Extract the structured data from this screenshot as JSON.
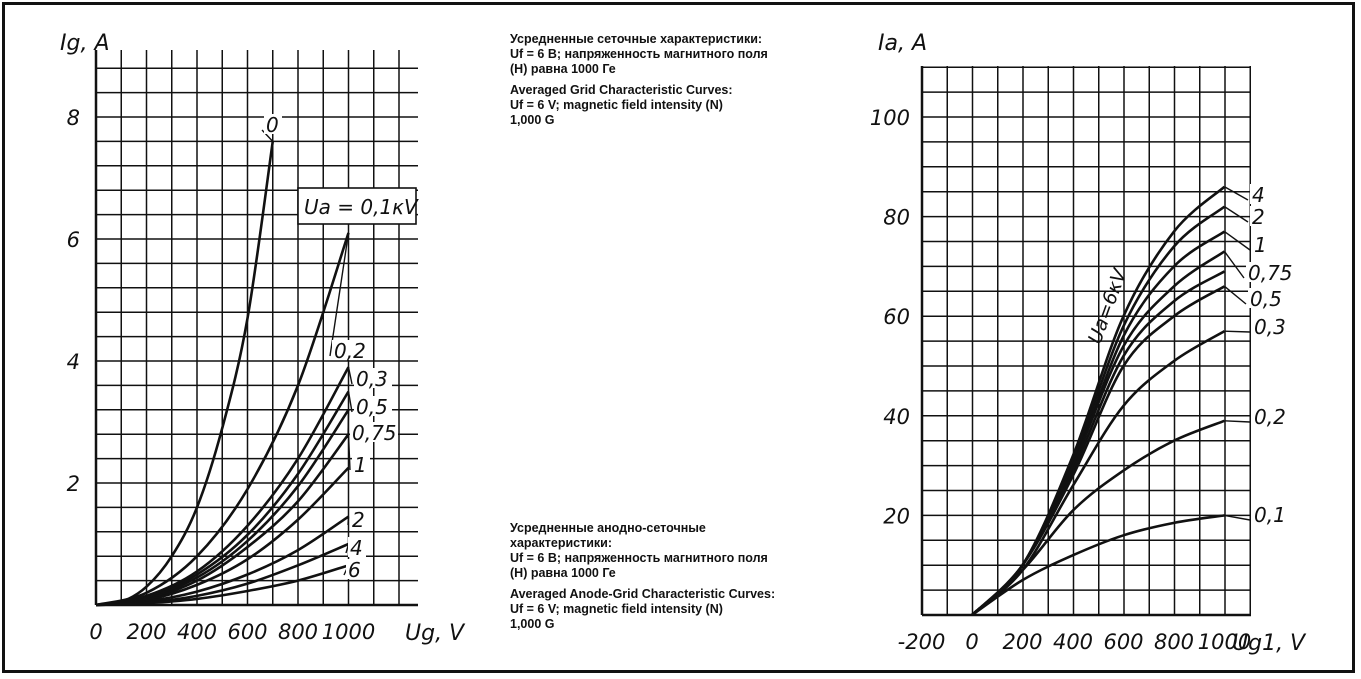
{
  "captions": {
    "grid_ru": [
      "Усредненные сеточные характеристики:",
      "Uf = 6 В; напряженность магнитного поля",
      "(Н) равна 1000 Ге"
    ],
    "grid_en": [
      "Averaged Grid Characteristic Curves:",
      "Uf = 6 V; magnetic field intensity (N)",
      "1,000 G"
    ],
    "anode_ru": [
      "Усредненные анодно-сеточные",
      "характеристики:",
      "Uf = 6 В; напряженность магнитного поля",
      "(Н) равна 1000 Ге"
    ],
    "anode_en": [
      "Averaged Anode-Grid Characteristic Curves:",
      "Uf = 6 V; magnetic field intensity (N)",
      "1,000 G"
    ]
  },
  "colors": {
    "ink": "#111111",
    "background": "#ffffff"
  },
  "chart_data": [
    {
      "type": "line",
      "ylabel": "Ig, A",
      "xlabel": "Ug, V",
      "xlim": [
        0,
        1100
      ],
      "ylim": [
        0,
        8.6
      ],
      "x_ticks": [
        "0",
        "200",
        "400",
        "600",
        "800",
        "1000"
      ],
      "y_ticks": [
        "2",
        "4",
        "6",
        "8"
      ],
      "grid": true,
      "annotation": "Ua = 0,1κV",
      "series": [
        {
          "name": "0",
          "x": [
            0,
            100,
            200,
            300,
            400,
            500,
            600,
            700
          ],
          "y": [
            0,
            0.05,
            0.3,
            0.8,
            1.6,
            2.9,
            4.7,
            7.6
          ]
        },
        {
          "name": "0,2",
          "x": [
            0,
            200,
            400,
            600,
            800,
            1000
          ],
          "y": [
            0,
            0.2,
            0.8,
            1.9,
            3.6,
            6.1
          ]
        },
        {
          "name": "0,3",
          "x": [
            0,
            200,
            400,
            600,
            800,
            1000
          ],
          "y": [
            0,
            0.15,
            0.55,
            1.3,
            2.4,
            3.9
          ]
        },
        {
          "name": "0,5",
          "x": [
            0,
            200,
            400,
            600,
            800,
            1000
          ],
          "y": [
            0,
            0.13,
            0.5,
            1.15,
            2.15,
            3.5
          ]
        },
        {
          "name": "0,75",
          "x": [
            0,
            200,
            400,
            600,
            800,
            1000
          ],
          "y": [
            0,
            0.12,
            0.45,
            1.05,
            1.95,
            3.2
          ]
        },
        {
          "name": "1",
          "x": [
            0,
            200,
            400,
            600,
            800,
            1000
          ],
          "y": [
            0,
            0.1,
            0.4,
            0.95,
            1.7,
            2.8
          ]
        },
        {
          "name": "",
          "x": [
            0,
            200,
            400,
            600,
            800,
            1000
          ],
          "y": [
            0,
            0.08,
            0.33,
            0.75,
            1.4,
            2.25
          ]
        },
        {
          "name": "2",
          "x": [
            0,
            200,
            400,
            600,
            800,
            1000
          ],
          "y": [
            0,
            0.06,
            0.22,
            0.5,
            0.9,
            1.45
          ]
        },
        {
          "name": "4",
          "x": [
            0,
            200,
            400,
            600,
            800,
            1000
          ],
          "y": [
            0,
            0.04,
            0.15,
            0.35,
            0.65,
            1.0
          ]
        },
        {
          "name": "6",
          "x": [
            0,
            200,
            400,
            600,
            800,
            1000
          ],
          "y": [
            0,
            0.03,
            0.1,
            0.23,
            0.4,
            0.65
          ]
        }
      ]
    },
    {
      "type": "line",
      "ylabel": "Ia, A",
      "xlabel": "Ug1, V",
      "xlim": [
        -200,
        1100
      ],
      "ylim": [
        0,
        110
      ],
      "x_ticks": [
        "-200",
        "0",
        "200",
        "400",
        "600",
        "800",
        "1000"
      ],
      "y_ticks": [
        "20",
        "40",
        "60",
        "80",
        "100"
      ],
      "grid": true,
      "annotation": "Ua=6κV",
      "series": [
        {
          "name": "4",
          "x": [
            0,
            200,
            400,
            600,
            800,
            1000
          ],
          "y": [
            0,
            10,
            32,
            60,
            77,
            86
          ]
        },
        {
          "name": "2",
          "x": [
            0,
            200,
            400,
            600,
            800,
            1000
          ],
          "y": [
            0,
            10,
            31,
            58,
            74,
            82
          ]
        },
        {
          "name": "1",
          "x": [
            0,
            200,
            400,
            600,
            800,
            1000
          ],
          "y": [
            0,
            10,
            30,
            56,
            70,
            77
          ]
        },
        {
          "name": "0,75",
          "x": [
            0,
            200,
            400,
            600,
            800,
            1000
          ],
          "y": [
            0,
            10,
            30,
            54,
            66,
            73
          ]
        },
        {
          "name": "",
          "x": [
            0,
            200,
            400,
            600,
            800,
            1000
          ],
          "y": [
            0,
            10,
            29,
            52,
            63,
            69
          ]
        },
        {
          "name": "0,5",
          "x": [
            0,
            200,
            400,
            600,
            800,
            1000
          ],
          "y": [
            0,
            10,
            28,
            50,
            60,
            66
          ]
        },
        {
          "name": "0,3",
          "x": [
            0,
            200,
            400,
            600,
            800,
            1000
          ],
          "y": [
            0,
            9,
            26,
            42,
            51,
            57
          ]
        },
        {
          "name": "0,2",
          "x": [
            0,
            200,
            400,
            600,
            800,
            1000
          ],
          "y": [
            0,
            9,
            21,
            29,
            35,
            39
          ]
        },
        {
          "name": "0,1",
          "x": [
            0,
            200,
            400,
            600,
            800,
            1000
          ],
          "y": [
            0,
            7,
            12,
            16,
            18.5,
            20
          ]
        }
      ]
    }
  ]
}
